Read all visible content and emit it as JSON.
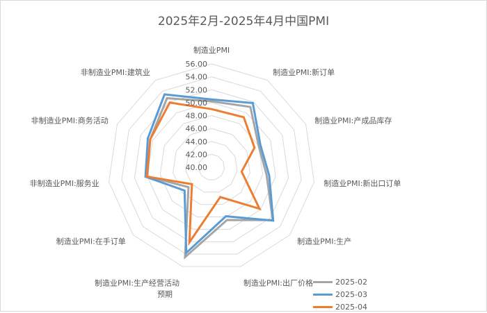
{
  "chart_data": {
    "type": "radar",
    "title": "2025年2月-2025年4月中国PMI",
    "categories": [
      "制造业PMI",
      "制造业PMI:新订单",
      "制造业PMI:产成品库存",
      "制造业PMI:新出口订单",
      "制造业PMI:生产",
      "制造业PMI:出厂价格",
      "制造业PMI:生产经营活动预期",
      "制造业PMI:在手订单",
      "非制造业PMI:服务业",
      "非制造业PMI:商务活动",
      "非制造业PMI:建筑业"
    ],
    "series": [
      {
        "name": "2025-02",
        "color": "#a5a5a5",
        "values": [
          50.2,
          51.1,
          48.0,
          48.6,
          52.5,
          48.5,
          54.5,
          44.7,
          50.0,
          50.4,
          52.7
        ]
      },
      {
        "name": "2025-03",
        "color": "#5b9bd5",
        "values": [
          50.5,
          51.8,
          48.3,
          49.0,
          52.6,
          47.9,
          53.8,
          45.5,
          50.3,
          50.8,
          53.4
        ]
      },
      {
        "name": "2025-04",
        "color": "#ed7d31",
        "values": [
          49.0,
          49.2,
          47.3,
          44.7,
          49.8,
          44.8,
          52.1,
          44.0,
          50.1,
          50.4,
          51.9
        ]
      }
    ],
    "rlim": [
      40,
      56
    ],
    "ticks": [
      "40.00",
      "42.00",
      "44.00",
      "46.00",
      "48.00",
      "50.00",
      "52.00",
      "54.00",
      "56.00"
    ],
    "legend_position": "bottom-right",
    "grid": true
  }
}
